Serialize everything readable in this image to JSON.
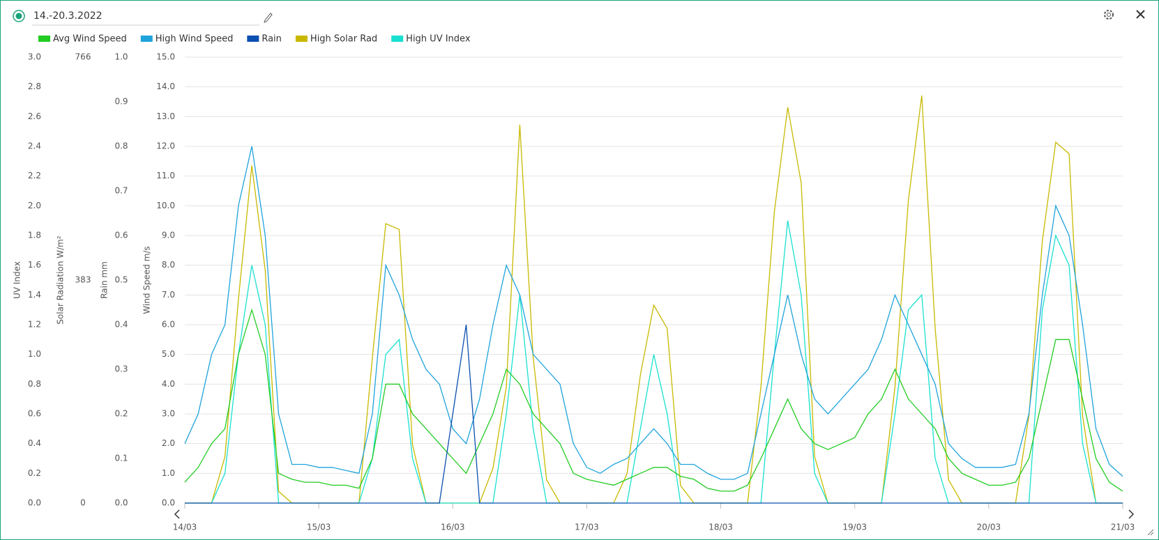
{
  "chart_data": {
    "type": "line",
    "title": "14.-20.3.2022",
    "x": [
      14,
      14.1,
      14.2,
      14.3,
      14.4,
      14.5,
      14.6,
      14.7,
      14.8,
      14.9,
      15,
      15.1,
      15.2,
      15.3,
      15.4,
      15.5,
      15.6,
      15.7,
      15.8,
      15.9,
      16,
      16.1,
      16.2,
      16.3,
      16.4,
      16.5,
      16.6,
      16.7,
      16.8,
      16.9,
      17,
      17.1,
      17.2,
      17.3,
      17.4,
      17.5,
      17.6,
      17.7,
      17.8,
      17.9,
      18,
      18.1,
      18.2,
      18.3,
      18.4,
      18.5,
      18.6,
      18.7,
      18.8,
      18.9,
      19,
      19.1,
      19.2,
      19.3,
      19.4,
      19.5,
      19.6,
      19.7,
      19.8,
      19.9,
      20,
      20.1,
      20.2,
      20.3,
      20.4,
      20.5,
      20.6,
      20.7,
      20.8,
      20.9,
      21
    ],
    "xlim": [
      14,
      21
    ],
    "xticks": [
      {
        "value": 14,
        "label": "14/03"
      },
      {
        "value": 15,
        "label": "15/03"
      },
      {
        "value": 16,
        "label": "16/03"
      },
      {
        "value": 17,
        "label": "17/03"
      },
      {
        "value": 18,
        "label": "18/03"
      },
      {
        "value": 19,
        "label": "19/03"
      },
      {
        "value": 20,
        "label": "20/03"
      },
      {
        "value": 21,
        "label": "21/03"
      }
    ],
    "ylabel": "Wind Speed m/s",
    "ylim": [
      0,
      15
    ],
    "yticks": [
      {
        "value": 0,
        "label": "0.0"
      },
      {
        "value": 1,
        "label": "1.0"
      },
      {
        "value": 2,
        "label": "2.0"
      },
      {
        "value": 3,
        "label": "3.0"
      },
      {
        "value": 4,
        "label": "4.0"
      },
      {
        "value": 5,
        "label": "5.0"
      },
      {
        "value": 6,
        "label": "6.0"
      },
      {
        "value": 7,
        "label": "7.0"
      },
      {
        "value": 8,
        "label": "8.0"
      },
      {
        "value": 9,
        "label": "9.0"
      },
      {
        "value": 10,
        "label": "10.0"
      },
      {
        "value": 11,
        "label": "11.0"
      },
      {
        "value": 12,
        "label": "12.0"
      },
      {
        "value": 13,
        "label": "13.0"
      },
      {
        "value": 14,
        "label": "14.0"
      },
      {
        "value": 15,
        "label": "15.0"
      }
    ],
    "y2label": "Rain mm",
    "y2lim": [
      0,
      1
    ],
    "y2ticks": [
      {
        "value": 0,
        "label": "0.0"
      },
      {
        "value": 0.1,
        "label": "0.1"
      },
      {
        "value": 0.2,
        "label": "0.2"
      },
      {
        "value": 0.3,
        "label": "0.3"
      },
      {
        "value": 0.4,
        "label": "0.4"
      },
      {
        "value": 0.5,
        "label": "0.5"
      },
      {
        "value": 0.6,
        "label": "0.6"
      },
      {
        "value": 0.7,
        "label": "0.7"
      },
      {
        "value": 0.8,
        "label": "0.8"
      },
      {
        "value": 0.9,
        "label": "0.9"
      },
      {
        "value": 1,
        "label": "1.0"
      }
    ],
    "y3label": "Solar Radiation W/m²",
    "y3lim": [
      0,
      766
    ],
    "y3ticks": [
      0,
      383,
      766
    ],
    "y4label": "UV Index",
    "y4lim": [
      0,
      3
    ],
    "y4ticks": [
      {
        "value": 0,
        "label": "0.0"
      },
      {
        "value": 0.2,
        "label": "0.2"
      },
      {
        "value": 0.4,
        "label": "0.4"
      },
      {
        "value": 0.6,
        "label": "0.6"
      },
      {
        "value": 0.8,
        "label": "0.8"
      },
      {
        "value": 1,
        "label": "1.0"
      },
      {
        "value": 1.2,
        "label": "1.2"
      },
      {
        "value": 1.4,
        "label": "1.4"
      },
      {
        "value": 1.6,
        "label": "1.6"
      },
      {
        "value": 1.8,
        "label": "1.8"
      },
      {
        "value": 2,
        "label": "2.0"
      },
      {
        "value": 2.2,
        "label": "2.2"
      },
      {
        "value": 2.4,
        "label": "2.4"
      },
      {
        "value": 2.6,
        "label": "2.6"
      },
      {
        "value": 2.8,
        "label": "2.8"
      },
      {
        "value": 3,
        "label": "3.0"
      }
    ],
    "grid": true,
    "series": [
      {
        "name": "Avg Wind Speed",
        "color": "#22cc22",
        "axis": "y",
        "values": [
          0.7,
          1.2,
          2,
          2.5,
          5,
          6.5,
          5,
          1,
          0.8,
          0.7,
          0.7,
          0.6,
          0.6,
          0.5,
          1.5,
          4,
          4,
          3,
          2.5,
          2,
          1.5,
          1,
          2,
          3,
          4.5,
          4,
          3,
          2.5,
          2,
          1,
          0.8,
          0.7,
          0.6,
          0.8,
          1,
          1.2,
          1.2,
          0.9,
          0.8,
          0.5,
          0.4,
          0.4,
          0.6,
          1.5,
          2.5,
          3.5,
          2.5,
          2,
          1.8,
          2,
          2.2,
          3,
          3.5,
          4.5,
          3.5,
          3,
          2.5,
          1.5,
          1,
          0.8,
          0.6,
          0.6,
          0.7,
          1.5,
          3.5,
          5.5,
          5.5,
          3.5,
          1.5,
          0.7,
          0.4
        ]
      },
      {
        "name": "High Wind Speed",
        "color": "#1fa3dc",
        "axis": "y",
        "values": [
          2,
          3,
          5,
          6,
          10,
          12,
          9,
          3,
          1.3,
          1.3,
          1.2,
          1.2,
          1.1,
          1,
          3,
          8,
          7,
          5.5,
          4.5,
          4,
          2.5,
          2,
          3.5,
          6,
          8,
          7,
          5,
          4.5,
          4,
          2,
          1.2,
          1,
          1.3,
          1.5,
          2,
          2.5,
          2,
          1.3,
          1.3,
          1,
          0.8,
          0.8,
          1,
          3,
          5,
          7,
          5,
          3.5,
          3,
          3.5,
          4,
          4.5,
          5.5,
          7,
          6,
          5,
          4,
          2,
          1.5,
          1.2,
          1.2,
          1.2,
          1.3,
          3,
          7,
          10,
          9,
          6,
          2.5,
          1.3,
          0.9
        ]
      },
      {
        "name": "Rain",
        "color": "#0b4fb0",
        "axis": "y2",
        "values": [
          0,
          0,
          0,
          0,
          0,
          0,
          0,
          0,
          0,
          0,
          0,
          0,
          0,
          0,
          0,
          0,
          0,
          0,
          0,
          0,
          0.2,
          0.4,
          0,
          0,
          0,
          0,
          0,
          0,
          0,
          0,
          0,
          0,
          0,
          0,
          0,
          0,
          0,
          0,
          0,
          0,
          0,
          0,
          0,
          0,
          0,
          0,
          0,
          0,
          0,
          0,
          0,
          0,
          0,
          0,
          0,
          0,
          0,
          0,
          0,
          0,
          0,
          0,
          0,
          0,
          0,
          0,
          0,
          0,
          0,
          0,
          0
        ]
      },
      {
        "name": "High Solar Rad",
        "color": "#c8b900",
        "axis": "y3",
        "values": [
          0,
          0,
          0,
          80,
          350,
          580,
          400,
          20,
          0,
          0,
          0,
          0,
          0,
          0,
          250,
          480,
          470,
          100,
          0,
          0,
          0,
          0,
          0,
          60,
          200,
          650,
          250,
          40,
          0,
          0,
          0,
          0,
          0,
          50,
          220,
          340,
          300,
          30,
          0,
          0,
          0,
          0,
          0,
          200,
          500,
          680,
          550,
          80,
          0,
          0,
          0,
          0,
          0,
          200,
          520,
          700,
          300,
          40,
          0,
          0,
          0,
          0,
          0,
          150,
          450,
          620,
          600,
          150,
          0,
          0,
          0
        ]
      },
      {
        "name": "High UV Index",
        "color": "#19e0d0",
        "axis": "y4",
        "values": [
          0,
          0,
          0,
          0.2,
          1,
          1.6,
          1.2,
          0,
          0,
          0,
          0,
          0,
          0,
          0,
          0.3,
          1,
          1.1,
          0.3,
          0,
          0,
          0,
          0,
          0,
          0,
          0.6,
          1.4,
          0.5,
          0,
          0,
          0,
          0,
          0,
          0,
          0,
          0.5,
          1,
          0.6,
          0,
          0,
          0,
          0,
          0,
          0,
          0,
          1,
          1.9,
          1.4,
          0.2,
          0,
          0,
          0,
          0,
          0,
          0.6,
          1.3,
          1.4,
          0.3,
          0,
          0,
          0,
          0,
          0,
          0,
          0,
          1.3,
          1.8,
          1.6,
          0.4,
          0,
          0,
          0
        ]
      }
    ]
  }
}
